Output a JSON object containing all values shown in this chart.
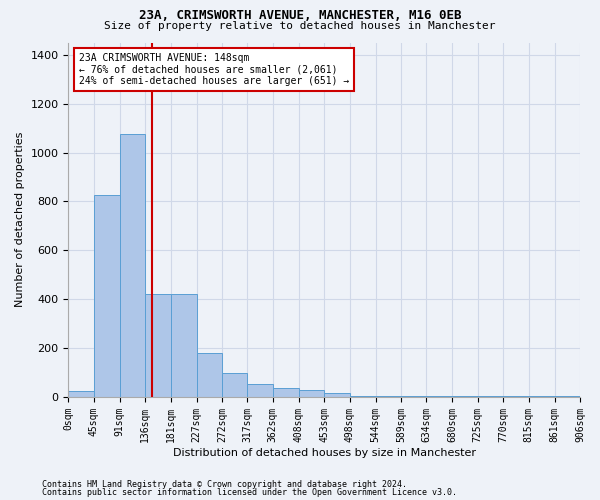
{
  "title": "23A, CRIMSWORTH AVENUE, MANCHESTER, M16 0EB",
  "subtitle": "Size of property relative to detached houses in Manchester",
  "xlabel": "Distribution of detached houses by size in Manchester",
  "ylabel": "Number of detached properties",
  "footnote1": "Contains HM Land Registry data © Crown copyright and database right 2024.",
  "footnote2": "Contains public sector information licensed under the Open Government Licence v3.0.",
  "annotation_line1": "23A CRIMSWORTH AVENUE: 148sqm",
  "annotation_line2": "← 76% of detached houses are smaller (2,061)",
  "annotation_line3": "24% of semi-detached houses are larger (651) →",
  "property_size_sqm": 148,
  "bar_edges": [
    0,
    45,
    91,
    136,
    181,
    227,
    272,
    317,
    362,
    408,
    453,
    498,
    544,
    589,
    634,
    680,
    725,
    770,
    815,
    861,
    906
  ],
  "bar_heights": [
    25,
    825,
    1075,
    420,
    420,
    180,
    100,
    55,
    35,
    28,
    18,
    5,
    5,
    5,
    5,
    5,
    5,
    5,
    5,
    5
  ],
  "bar_color": "#aec6e8",
  "bar_edgecolor": "#5a9fd4",
  "vline_color": "#cc0000",
  "vline_x": 148,
  "annotation_box_edgecolor": "#cc0000",
  "annotation_box_facecolor": "#ffffff",
  "grid_color": "#d0d8e8",
  "background_color": "#eef2f8",
  "ylim": [
    0,
    1450
  ],
  "yticks": [
    0,
    200,
    400,
    600,
    800,
    1000,
    1200,
    1400
  ],
  "tick_labels": [
    "0sqm",
    "45sqm",
    "91sqm",
    "136sqm",
    "181sqm",
    "227sqm",
    "272sqm",
    "317sqm",
    "362sqm",
    "408sqm",
    "453sqm",
    "498sqm",
    "544sqm",
    "589sqm",
    "634sqm",
    "680sqm",
    "725sqm",
    "770sqm",
    "815sqm",
    "861sqm",
    "906sqm"
  ],
  "title_fontsize": 9,
  "subtitle_fontsize": 8,
  "ylabel_fontsize": 8,
  "xlabel_fontsize": 8,
  "footnote_fontsize": 6,
  "ytick_fontsize": 8,
  "xtick_fontsize": 7
}
